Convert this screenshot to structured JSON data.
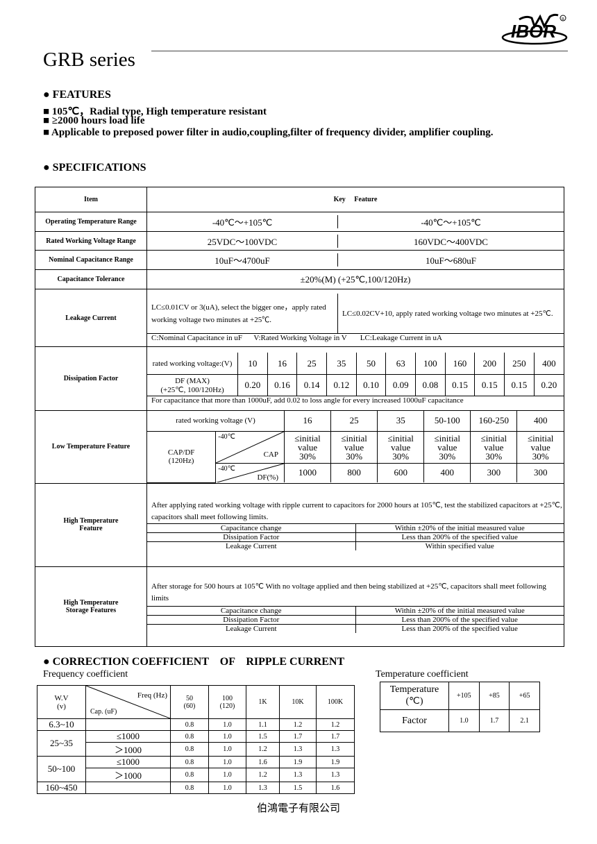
{
  "header": {
    "logo_text": "IBOR",
    "title": "GRB series"
  },
  "features": {
    "heading": "FEATURES",
    "items": [
      "105℃，Radial type, High temperature resistant",
      "≥2000 hours load life",
      "Applicable to preposed power filter in audio,coupling,filter of frequency divider, amplifier coupling."
    ]
  },
  "specs": {
    "heading": "SPECIFICATIONS",
    "col_item": "Item",
    "col_key": "Key     Feature",
    "op_temp": {
      "label": "Operating Temperature Range",
      "a": "-40℃～+105℃",
      "b": "-40℃～+105℃"
    },
    "voltage": {
      "label": "Rated Working Voltage Range",
      "a": "25VDC～100VDC",
      "b": "160VDC～400VDC"
    },
    "capacitance": {
      "label": "Nominal Capacitance Range",
      "a": "10uF～4700uF",
      "b": "10uF～680uF"
    },
    "tolerance": {
      "label": "Capacitance Tolerance",
      "value": "±20%(M) (+25℃,100/120Hz)"
    },
    "leakage": {
      "label": "Leakage Current",
      "a": "LC≤0.01CV or 3(uA), select the bigger one，apply rated working voltage two minutes at +25℃.",
      "b": "LC≤0.02CV+10, apply rated working voltage two minutes at +25℃.",
      "note": "C:Nominal Capacitance in uF      V:Rated Working Voltage in V       LC:Leakage Current in uA"
    },
    "dissipation": {
      "label": "Dissipation Factor",
      "voltage_label": "rated working voltage:(V)",
      "voltages": [
        "10",
        "16",
        "25",
        "35",
        "50",
        "63",
        "100",
        "160",
        "200",
        "250",
        "400"
      ],
      "df_label": "DF (MAX)",
      "df_cond": "(+25℃, 100/120Hz)",
      "df": [
        "0.20",
        "0.16",
        "0.14",
        "0.12",
        "0.10",
        "0.09",
        "0.08",
        "0.15",
        "0.15",
        "0.15",
        "0.20"
      ],
      "note": "For capacitance that more than 1000uF, add 0.02 to loss angle for every increased 1000uF capacitance"
    },
    "low_temp": {
      "label": "Low Temperature Feature",
      "voltage_label": "rated working voltage (V)",
      "voltages": [
        "16",
        "25",
        "35",
        "50-100",
        "160-250",
        "400"
      ],
      "capdf": "CAP/DF",
      "freq": "(120Hz)",
      "temp": "-40℃",
      "cap_label": "CAP",
      "df_label": "DF(%)",
      "cap": [
        "≤initial value 30%",
        "≤initial value 30%",
        "≤initial value 30%",
        "≤initial value 30%",
        "≤initial value 30%",
        "≤initial value 30%"
      ],
      "df": [
        "1000",
        "800",
        "600",
        "400",
        "300",
        "300"
      ]
    },
    "high_temp": {
      "label1": "High Temperature",
      "label2": "Feature",
      "desc": "After applying rated working voltage with ripple current to capacitors for 2000 hours at 105℃, test the stabilized capacitors at +25℃, capacitors shall meet following limits.",
      "rows": [
        {
          "k": "Capacitance change",
          "v": "Within ±20% of the initial measured value"
        },
        {
          "k": "Dissipation Factor",
          "v": "Less than 200% of the specified value"
        },
        {
          "k": "Leakage Current",
          "v": "Within specified value"
        }
      ]
    },
    "storage": {
      "label1": "High Temperature",
      "label2": "Storage Features",
      "desc": "After storage for 500 hours at 105℃ With no voltage applied and then being stabilized at +25℃, capacitors shall meet following limits",
      "rows": [
        {
          "k": "Capacitance change",
          "v": "Within ±20% of the initial measured value"
        },
        {
          "k": "Dissipation Factor",
          "v": "Less than 200% of the specified value"
        },
        {
          "k": "Leakage Current",
          "v": "Less than 200% of the specified value"
        }
      ]
    }
  },
  "ripple": {
    "heading": "CORRECTION COEFFICIENT    OF    RIPPLE CURRENT",
    "freq_title": "Frequency coefficient",
    "wv": "W.V",
    "wv_unit": "(v)",
    "freq_hz": "Freq (Hz)",
    "cap_uf": "Cap. (uF)",
    "freqs": [
      [
        "50",
        "(60)"
      ],
      [
        "100",
        "(120)"
      ],
      [
        "1K",
        ""
      ],
      [
        "10K",
        ""
      ],
      [
        "100K",
        ""
      ]
    ],
    "rows": [
      {
        "wv": "6.3~10",
        "cap": "",
        "v": [
          "0.8",
          "1.0",
          "1.1",
          "1.2",
          "1.2"
        ]
      },
      {
        "wv": "25~35",
        "cap": "≤1000",
        "v": [
          "0.8",
          "1.0",
          "1.5",
          "1.7",
          "1.7"
        ]
      },
      {
        "wv": "",
        "cap": "＞1000",
        "v": [
          "0.8",
          "1.0",
          "1.2",
          "1.3",
          "1.3"
        ]
      },
      {
        "wv": "50~100",
        "cap": "≤1000",
        "v": [
          "0.8",
          "1.0",
          "1.6",
          "1.9",
          "1.9"
        ]
      },
      {
        "wv": "",
        "cap": "＞1000",
        "v": [
          "0.8",
          "1.0",
          "1.2",
          "1.3",
          "1.3"
        ]
      },
      {
        "wv": "160~450",
        "cap": "",
        "v": [
          "0.8",
          "1.0",
          "1.3",
          "1.5",
          "1.6"
        ]
      }
    ],
    "temp_title": "Temperature coefficient",
    "temp_label": "Temperature",
    "temp_unit": "(℃)",
    "temps": [
      "+105",
      "+85",
      "+65"
    ],
    "factor_label": "Factor",
    "factors": [
      "1.0",
      "1.7",
      "2.1"
    ]
  },
  "footer": {
    "company": "伯鴻電子有限公司"
  }
}
